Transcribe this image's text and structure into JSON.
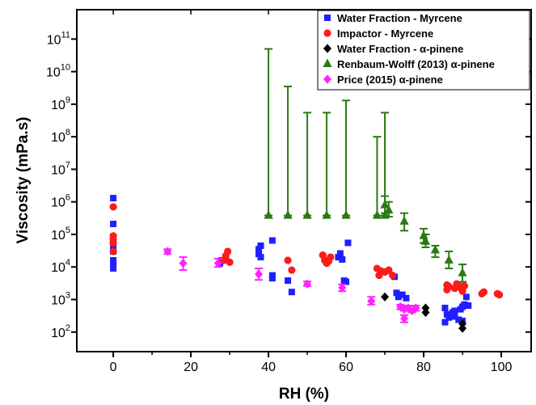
{
  "chart_data": {
    "type": "scatter",
    "title": "",
    "xlabel": "RH (%)",
    "ylabel": "Viscosity (mPa.s)",
    "xlim": [
      -9.4,
      107.7
    ],
    "ylim": [
      25,
      800000000000.0
    ],
    "yscale": "log",
    "grid": false,
    "legend_position": "top-right",
    "x_ticks": [
      0,
      20,
      40,
      60,
      80,
      100
    ],
    "x_tick_labels": [
      "0",
      "20",
      "40",
      "60",
      "80",
      "100"
    ],
    "y_ticks": [
      {
        "value": 100.0,
        "base": "10",
        "exp": "2"
      },
      {
        "value": 1000.0,
        "base": "10",
        "exp": "3"
      },
      {
        "value": 10000.0,
        "base": "10",
        "exp": "4"
      },
      {
        "value": 100000.0,
        "base": "10",
        "exp": "5"
      },
      {
        "value": 1000000.0,
        "base": "10",
        "exp": "6"
      },
      {
        "value": 10000000.0,
        "base": "10",
        "exp": "7"
      },
      {
        "value": 100000000.0,
        "base": "10",
        "exp": "8"
      },
      {
        "value": 1000000000.0,
        "base": "10",
        "exp": "9"
      },
      {
        "value": 10000000000.0,
        "base": "10",
        "exp": "10"
      },
      {
        "value": 100000000000.0,
        "base": "10",
        "exp": "11"
      }
    ],
    "series": [
      {
        "name": "Water Fraction - Myrcene",
        "color": "#1f1fff",
        "marker": "square",
        "points": [
          [
            0,
            1300000.0
          ],
          [
            0,
            210000.0
          ],
          [
            0,
            45000.0
          ],
          [
            0,
            30000.0
          ],
          [
            0,
            16000.0
          ],
          [
            0,
            12000.0
          ],
          [
            0,
            9000.0
          ],
          [
            27.5,
            13000.0
          ],
          [
            28,
            16000.0
          ],
          [
            29,
            18000.0
          ],
          [
            37.5,
            25000.0
          ],
          [
            37.5,
            35000.0
          ],
          [
            38,
            45000.0
          ],
          [
            38,
            20000.0
          ],
          [
            41,
            65000.0
          ],
          [
            41,
            5500.0
          ],
          [
            41,
            4500.0
          ],
          [
            45,
            3800.0
          ],
          [
            46,
            1700.0
          ],
          [
            58,
            20000.0
          ],
          [
            58.5,
            26000.0
          ],
          [
            59,
            17000.0
          ],
          [
            59.5,
            3800.0
          ],
          [
            60,
            3500.0
          ],
          [
            60.5,
            55000.0
          ],
          [
            72.5,
            5000.0
          ],
          [
            73,
            1600.0
          ],
          [
            73.5,
            1200.0
          ],
          [
            74.5,
            1400.0
          ],
          [
            75.5,
            1100.0
          ],
          [
            85.5,
            550
          ],
          [
            85.5,
            200
          ],
          [
            86,
            350
          ],
          [
            86.5,
            280
          ],
          [
            87.5,
            400
          ],
          [
            88,
            300
          ],
          [
            88,
            450
          ],
          [
            89,
            240
          ],
          [
            89.5,
            500
          ],
          [
            90,
            600
          ],
          [
            90,
            220
          ],
          [
            90.5,
            700
          ],
          [
            91,
            1200.0
          ],
          [
            91.5,
            650
          ]
        ]
      },
      {
        "name": "Impactor - Myrcene",
        "color": "#ff1a1a",
        "marker": "circle",
        "points": [
          [
            0,
            700000.0
          ],
          [
            0,
            90000.0
          ],
          [
            0,
            70000.0
          ],
          [
            0,
            55000.0
          ],
          [
            0,
            30000.0
          ],
          [
            28.5,
            16000.0
          ],
          [
            29,
            22000.0
          ],
          [
            29.5,
            30000.0
          ],
          [
            30,
            14000.0
          ],
          [
            45,
            16000.0
          ],
          [
            46,
            8000.0
          ],
          [
            54,
            23000.0
          ],
          [
            54.5,
            16000.0
          ],
          [
            55,
            13000.0
          ],
          [
            55.5,
            15000.0
          ],
          [
            56,
            20000.0
          ],
          [
            68,
            9000.0
          ],
          [
            68.5,
            5500.0
          ],
          [
            69,
            7500.0
          ],
          [
            70,
            7000.0
          ],
          [
            71,
            8000.0
          ],
          [
            72,
            5500.0
          ],
          [
            86,
            2800.0
          ],
          [
            86,
            2000.0
          ],
          [
            86.5,
            2500.0
          ],
          [
            88,
            2200.0
          ],
          [
            88.5,
            3000.0
          ],
          [
            89,
            2800.0
          ],
          [
            89.5,
            2300.0
          ],
          [
            90,
            1800.0
          ],
          [
            90.5,
            2600.0
          ],
          [
            95,
            1500.0
          ],
          [
            95.5,
            1700.0
          ],
          [
            99,
            1500.0
          ],
          [
            99.5,
            1400.0
          ]
        ]
      },
      {
        "name": "Water Fraction - α-pinene",
        "color": "#000000",
        "marker": "diamond",
        "points": [
          [
            70,
            1200.0
          ],
          [
            80.5,
            550
          ],
          [
            80.5,
            400
          ],
          [
            90,
            180
          ],
          [
            90,
            130
          ]
        ]
      },
      {
        "name": "Renbaum-Wolff (2013) α-pinene",
        "color": "#2a7a12",
        "marker": "triangle",
        "points": [
          [
            40,
            380000.0,
            380000.0,
            50000000000.0
          ],
          [
            45,
            380000.0,
            380000.0,
            3500000000.0
          ],
          [
            50,
            380000.0,
            380000.0,
            550000000.0
          ],
          [
            55,
            380000.0,
            380000.0,
            550000000.0
          ],
          [
            60,
            380000.0,
            380000.0,
            1300000000.0
          ],
          [
            68,
            380000.0,
            380000.0,
            100000000.0
          ],
          [
            70,
            380000.0,
            380000.0,
            550000000.0
          ],
          [
            70,
            800000.0,
            450000.0,
            1500000.0
          ],
          [
            71,
            550000.0,
            350000.0,
            1000000.0
          ],
          [
            75,
            250000.0,
            130000.0,
            450000.0
          ],
          [
            80,
            90000.0,
            55000.0,
            150000.0
          ],
          [
            80.5,
            60000.0,
            40000.0,
            100000.0
          ],
          [
            83,
            33000.0,
            20000.0,
            45000.0
          ],
          [
            86.5,
            16000.0,
            9000.0,
            30000.0
          ],
          [
            90,
            6500.0,
            3500.0,
            12000.0
          ]
        ]
      },
      {
        "name": "Price (2015) α-pinene",
        "color": "#ff22ff",
        "marker": "diamond",
        "points": [
          [
            14,
            30000.0,
            25000.0,
            35000.0
          ],
          [
            18,
            13000.0,
            8000.0,
            20000.0
          ],
          [
            27,
            13000.0,
            10000.0,
            18000.0
          ],
          [
            37.5,
            6000.0,
            4000.0,
            9000.0
          ],
          [
            50,
            3000.0,
            2600.0,
            3600.0
          ],
          [
            59,
            2300.0,
            1800.0,
            2900.0
          ],
          [
            66.5,
            900,
            700,
            1200.0
          ],
          [
            74,
            600,
            500,
            700
          ],
          [
            75,
            500,
            450,
            600
          ],
          [
            75,
            260,
            200,
            330
          ],
          [
            76,
            550,
            450,
            650
          ],
          [
            77,
            450,
            400,
            500
          ],
          [
            78,
            550,
            450,
            650
          ]
        ]
      }
    ]
  }
}
